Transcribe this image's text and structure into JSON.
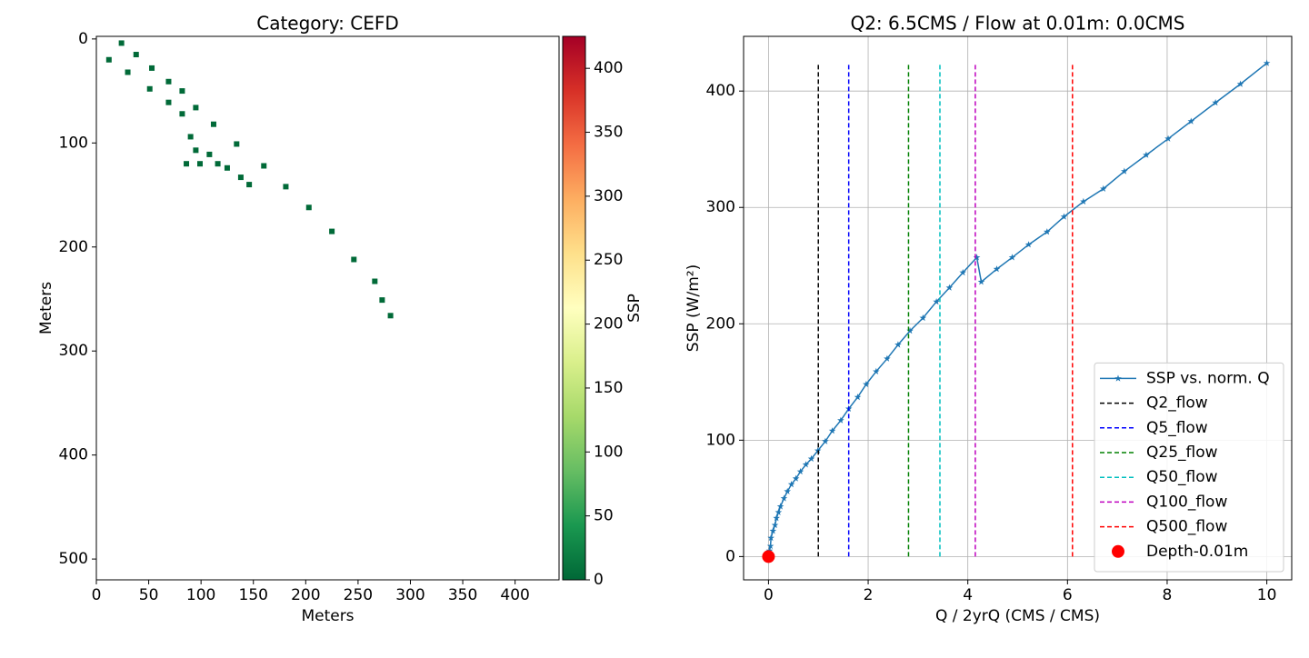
{
  "chart_data": [
    {
      "type": "heatmap",
      "title": "Category: CEFD",
      "x_label": "Meters",
      "y_label": "Meters",
      "xlim": [
        0,
        442
      ],
      "ylim": [
        520,
        -2.5
      ],
      "xticks": [
        0,
        50,
        100,
        150,
        200,
        250,
        300,
        350,
        400
      ],
      "yticks": [
        0,
        100,
        200,
        300,
        400,
        500
      ],
      "x": [
        24,
        38,
        53,
        69,
        82,
        95,
        112,
        134,
        160,
        181,
        203,
        225,
        246,
        266,
        273,
        281,
        12,
        30,
        51,
        69,
        82,
        90,
        95,
        99,
        108,
        116,
        125,
        138,
        146,
        86
      ],
      "y": [
        4,
        15,
        28,
        41,
        50,
        66,
        82,
        101,
        122,
        142,
        162,
        185,
        212,
        233,
        251,
        266,
        20,
        32,
        48,
        61,
        72,
        94,
        107,
        120,
        111,
        120,
        124,
        133,
        140,
        120
      ],
      "values": [
        2,
        2,
        2,
        2,
        2,
        2,
        2,
        2,
        2,
        2,
        2,
        2,
        2,
        2,
        2,
        2,
        2,
        2,
        2,
        2,
        2,
        2,
        2,
        2,
        2,
        2,
        2,
        2,
        2,
        2
      ],
      "colorbar": {
        "label": "SSP",
        "lim": [
          0,
          425
        ],
        "ticks": [
          0,
          50,
          100,
          150,
          200,
          250,
          300,
          350,
          400
        ],
        "colormap": "RdYlGn_r"
      }
    },
    {
      "type": "line",
      "title": "Q2: 6.5CMS / Flow at 0.01m: 0.0CMS",
      "x_label": "Q / 2yrQ (CMS / CMS)",
      "y_label": "SSP (W/m²)",
      "xlim": [
        -0.5,
        10.5
      ],
      "ylim": [
        -20,
        447
      ],
      "xticks": [
        0,
        2,
        4,
        6,
        8,
        10
      ],
      "yticks": [
        0,
        100,
        200,
        300,
        400
      ],
      "grid": true,
      "legend": "lower right",
      "series": [
        {
          "name": "SSP vs. norm. Q",
          "color": "#1f77b4",
          "marker": "star",
          "style": "solid",
          "x": [
            0,
            0.02,
            0.04,
            0.05,
            0.09,
            0.13,
            0.16,
            0.2,
            0.24,
            0.31,
            0.38,
            0.46,
            0.55,
            0.64,
            0.75,
            0.86,
            0.99,
            1.14,
            1.28,
            1.45,
            1.61,
            1.79,
            1.96,
            2.16,
            2.38,
            2.6,
            2.84,
            3.1,
            3.37,
            3.63,
            3.9,
            4.18,
            4.27,
            4.58,
            4.89,
            5.22,
            5.59,
            5.93,
            6.32,
            6.72,
            7.14,
            7.58,
            8.02,
            8.48,
            8.97,
            9.47,
            10
          ],
          "values": [
            0,
            5,
            9,
            16,
            22,
            27,
            33,
            38,
            43,
            50,
            56,
            62,
            67,
            73,
            79,
            84,
            91,
            99,
            108,
            117,
            127,
            137,
            148,
            159,
            170,
            182,
            194,
            205,
            219,
            231,
            244,
            257,
            236,
            247,
            257,
            268,
            279,
            292,
            305,
            316,
            331,
            345,
            359,
            374,
            390,
            406,
            424
          ]
        },
        {
          "name": "Q2_flow",
          "color": "#000000",
          "style": "dashed",
          "x": [
            1.0,
            1.0
          ],
          "values": [
            0,
            424
          ]
        },
        {
          "name": "Q5_flow",
          "color": "#0000ff",
          "style": "dashed",
          "x": [
            1.61,
            1.61
          ],
          "values": [
            0,
            424
          ]
        },
        {
          "name": "Q25_flow",
          "color": "#008000",
          "style": "dashed",
          "x": [
            2.81,
            2.81
          ],
          "values": [
            0,
            424
          ]
        },
        {
          "name": "Q50_flow",
          "color": "#00bfbf",
          "style": "dashed",
          "x": [
            3.44,
            3.44
          ],
          "values": [
            0,
            424
          ]
        },
        {
          "name": "Q100_flow",
          "color": "#bf00bf",
          "style": "dashed",
          "x": [
            4.15,
            4.15
          ],
          "values": [
            0,
            424
          ]
        },
        {
          "name": "Q500_flow",
          "color": "#ff0000",
          "style": "dashed",
          "x": [
            6.1,
            6.1
          ],
          "values": [
            0,
            424
          ]
        },
        {
          "name": "Depth-0.01m",
          "color": "#ff0000",
          "marker": "circle",
          "style": "none",
          "x": [
            0
          ],
          "values": [
            0
          ]
        }
      ]
    }
  ]
}
